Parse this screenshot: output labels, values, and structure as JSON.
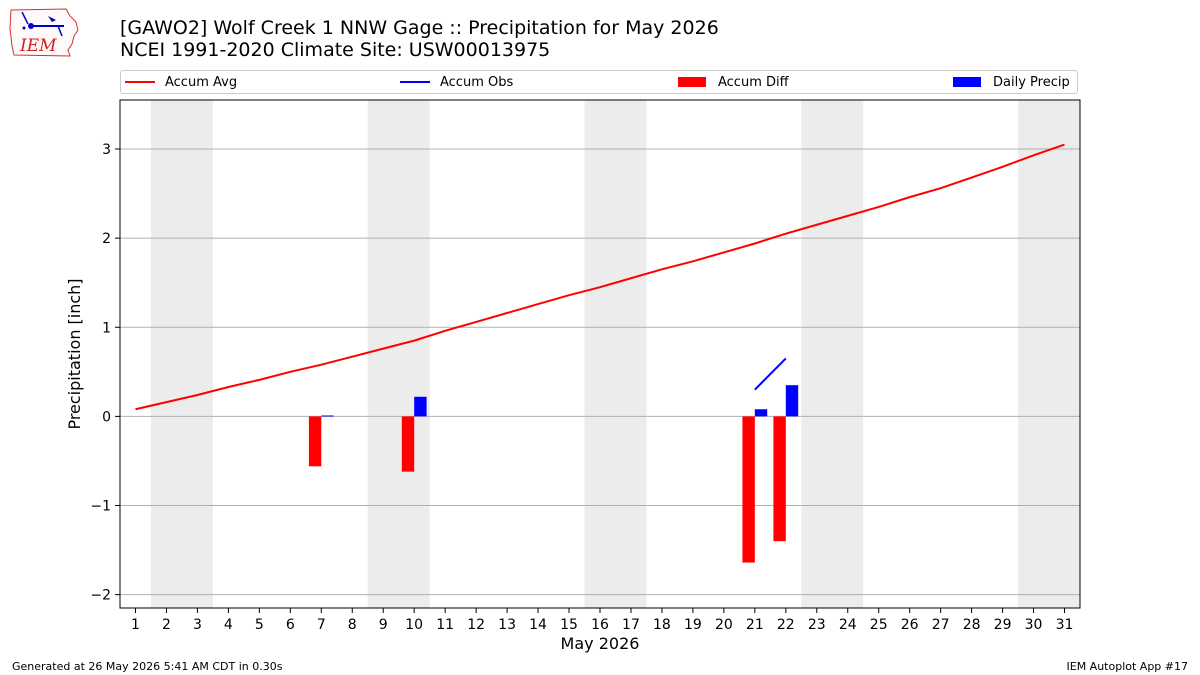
{
  "logo": {
    "text": "IEM",
    "icon": "iem-iowa-logo-icon"
  },
  "header": {
    "title_line1": "[GAWO2] Wolf Creek 1 NNW Gage :: Precipitation for May 2026",
    "title_line2": "NCEI 1991-2020 Climate Site: USW00013975"
  },
  "legend": {
    "accum_avg": "Accum Avg",
    "accum_obs": "Accum Obs",
    "accum_diff": "Accum Diff",
    "daily_precip": "Daily Precip"
  },
  "colors": {
    "avg": "#ff0000",
    "obs": "#0000ff",
    "diff": "#ff0000",
    "precip": "#0000ff",
    "weekend": "#ececec",
    "grid": "#b0b0b0"
  },
  "chart_data": {
    "type": "bar",
    "xlabel": "May 2026",
    "ylabel": "Precipitation [inch]",
    "xlim": [
      0.5,
      31.5
    ],
    "ylim": [
      -2.15,
      3.55
    ],
    "grid": "horizontal",
    "legend_position": "top",
    "days": [
      1,
      2,
      3,
      4,
      5,
      6,
      7,
      8,
      9,
      10,
      11,
      12,
      13,
      14,
      15,
      16,
      17,
      18,
      19,
      20,
      21,
      22,
      23,
      24,
      25,
      26,
      27,
      28,
      29,
      30,
      31
    ],
    "yticks": [
      -2,
      -1,
      0,
      1,
      2,
      3
    ],
    "ytick_labels": [
      "−2",
      "−1",
      "0",
      "1",
      "2",
      "3"
    ],
    "weekend_spans": [
      [
        1.5,
        3.5
      ],
      [
        8.5,
        10.5
      ],
      [
        15.5,
        17.5
      ],
      [
        22.5,
        24.5
      ],
      [
        29.5,
        31.5
      ]
    ],
    "series": [
      {
        "name": "Accum Avg",
        "type": "line",
        "x": [
          1,
          2,
          3,
          4,
          5,
          6,
          7,
          8,
          9,
          10,
          11,
          12,
          13,
          14,
          15,
          16,
          17,
          18,
          19,
          20,
          21,
          22,
          23,
          24,
          25,
          26,
          27,
          28,
          29,
          30,
          31
        ],
        "values": [
          0.08,
          0.16,
          0.24,
          0.33,
          0.41,
          0.5,
          0.58,
          0.67,
          0.76,
          0.85,
          0.96,
          1.06,
          1.16,
          1.26,
          1.36,
          1.45,
          1.55,
          1.65,
          1.74,
          1.84,
          1.94,
          2.05,
          2.15,
          2.25,
          2.35,
          2.46,
          2.56,
          2.68,
          2.8,
          2.93,
          3.05
        ]
      },
      {
        "name": "Accum Obs",
        "type": "line",
        "x": [
          21,
          22
        ],
        "values": [
          0.3,
          0.65
        ]
      },
      {
        "name": "Accum Diff",
        "type": "bar",
        "x": [
          7,
          10,
          21,
          22
        ],
        "values": [
          -0.56,
          -0.62,
          -1.64,
          -1.4
        ]
      },
      {
        "name": "Daily Precip",
        "type": "bar",
        "x": [
          7,
          10,
          21,
          22
        ],
        "values": [
          0.01,
          0.22,
          0.08,
          0.35
        ]
      }
    ]
  },
  "footer": {
    "left": "Generated at 26 May 2026 5:41 AM CDT in 0.30s",
    "right": "IEM Autoplot App #17"
  }
}
